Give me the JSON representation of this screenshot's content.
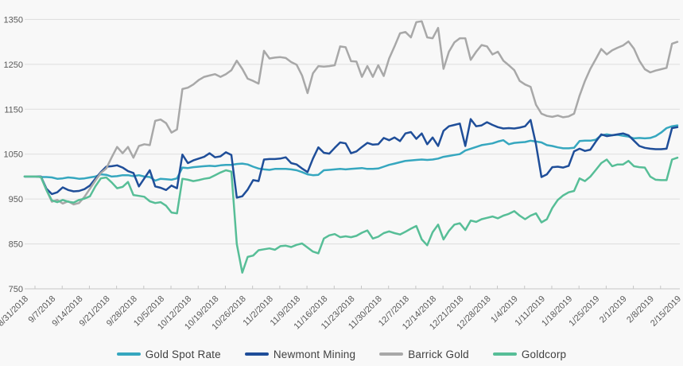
{
  "chart_data": {
    "type": "line",
    "title": "",
    "xlabel": "",
    "ylabel": "",
    "ylim": [
      750,
      1350
    ],
    "y_ticks": [
      750,
      850,
      950,
      1050,
      1150,
      1250,
      1350
    ],
    "grid": "horizontal-only",
    "legend_position": "bottom-center",
    "background_color": "#f8f8f8",
    "gridline_color": "#dddddd",
    "axis_line_color": "#c6c6c6",
    "axis_text_color": "#595959",
    "legend_text_color": "#3f3f3f",
    "x_tick_labels": [
      "8/31/2018",
      "9/7/2018",
      "9/14/2018",
      "9/21/2018",
      "9/28/2018",
      "10/5/2018",
      "10/12/2018",
      "10/19/2018",
      "10/26/2018",
      "11/2/2018",
      "11/9/2018",
      "11/16/2018",
      "11/23/2018",
      "11/30/2018",
      "12/7/2018",
      "12/14/2018",
      "12/21/2018",
      "12/28/2018",
      "1/4/2019",
      "1/11/2019",
      "1/18/2019",
      "1/25/2019",
      "2/1/2019",
      "2/8/2019",
      "2/15/2019"
    ],
    "points_per_tick": 5,
    "x_label_rotation_deg": -45,
    "series": [
      {
        "name": "Gold Spot Rate",
        "color": "#36a7bf",
        "values": [
          1000,
          1000,
          1000,
          999,
          999,
          998,
          995,
          996,
          998,
          997,
          995,
          996,
          998,
          1000,
          1005,
          1004,
          1000,
          1001,
          1003,
          1003,
          1001,
          1003,
          1000,
          999,
          991,
          995,
          994,
          993,
          996,
          1020,
          1019,
          1021,
          1022,
          1023,
          1024,
          1023,
          1025,
          1026,
          1026,
          1028,
          1029,
          1027,
          1022,
          1018,
          1016,
          1015,
          1017,
          1017,
          1017,
          1016,
          1014,
          1010,
          1005,
          1003,
          1004,
          1014,
          1015,
          1016,
          1017,
          1016,
          1017,
          1018,
          1019,
          1017,
          1017,
          1018,
          1022,
          1026,
          1029,
          1032,
          1035,
          1036,
          1037,
          1038,
          1037,
          1038,
          1040,
          1044,
          1046,
          1048,
          1050,
          1058,
          1062,
          1066,
          1070,
          1072,
          1074,
          1078,
          1081,
          1072,
          1075,
          1076,
          1077,
          1080,
          1078,
          1076,
          1070,
          1068,
          1065,
          1063,
          1063,
          1064,
          1079,
          1080,
          1080,
          1082,
          1092,
          1094,
          1092,
          1093,
          1091,
          1089,
          1085,
          1086,
          1085,
          1086,
          1090,
          1098,
          1108,
          1112,
          1114
        ]
      },
      {
        "name": "Newmont Mining",
        "color": "#1f4e99",
        "values": [
          1000,
          1000,
          1000,
          1000,
          973,
          961,
          965,
          976,
          970,
          967,
          968,
          972,
          980,
          995,
          1010,
          1022,
          1023,
          1025,
          1020,
          1012,
          1008,
          978,
          996,
          1014,
          978,
          975,
          970,
          980,
          974,
          1049,
          1030,
          1036,
          1040,
          1044,
          1052,
          1043,
          1045,
          1054,
          1048,
          953,
          956,
          971,
          992,
          990,
          1038,
          1039,
          1039,
          1040,
          1043,
          1030,
          1027,
          1018,
          1010,
          1040,
          1065,
          1053,
          1051,
          1064,
          1076,
          1074,
          1052,
          1056,
          1066,
          1075,
          1071,
          1072,
          1086,
          1081,
          1087,
          1079,
          1096,
          1099,
          1084,
          1096,
          1072,
          1087,
          1068,
          1102,
          1112,
          1115,
          1118,
          1068,
          1128,
          1112,
          1114,
          1121,
          1115,
          1110,
          1107,
          1108,
          1107,
          1109,
          1112,
          1126,
          1072,
          999,
          1005,
          1021,
          1022,
          1020,
          1024,
          1056,
          1062,
          1057,
          1060,
          1078,
          1094,
          1090,
          1092,
          1094,
          1096,
          1092,
          1080,
          1068,
          1064,
          1062,
          1061,
          1061,
          1062,
          1108,
          1110
        ]
      },
      {
        "name": "Barrick Gold",
        "color": "#a8a8a8",
        "values": [
          1000,
          1000,
          1000,
          999,
          970,
          944,
          948,
          940,
          945,
          938,
          941,
          955,
          973,
          991,
          1008,
          1018,
          1043,
          1066,
          1052,
          1066,
          1042,
          1068,
          1072,
          1070,
          1124,
          1127,
          1119,
          1098,
          1105,
          1195,
          1198,
          1205,
          1215,
          1222,
          1225,
          1228,
          1222,
          1228,
          1237,
          1258,
          1240,
          1218,
          1213,
          1207,
          1280,
          1263,
          1265,
          1266,
          1264,
          1255,
          1249,
          1225,
          1186,
          1230,
          1246,
          1245,
          1246,
          1248,
          1290,
          1288,
          1257,
          1256,
          1222,
          1246,
          1222,
          1248,
          1224,
          1263,
          1290,
          1319,
          1322,
          1310,
          1344,
          1346,
          1310,
          1308,
          1331,
          1240,
          1278,
          1299,
          1308,
          1308,
          1260,
          1278,
          1293,
          1290,
          1272,
          1278,
          1258,
          1248,
          1237,
          1213,
          1205,
          1200,
          1160,
          1140,
          1135,
          1133,
          1136,
          1132,
          1134,
          1140,
          1180,
          1213,
          1240,
          1262,
          1284,
          1272,
          1281,
          1287,
          1292,
          1301,
          1285,
          1258,
          1239,
          1232,
          1236,
          1239,
          1242,
          1296,
          1300
        ]
      },
      {
        "name": "Goldcorp",
        "color": "#57be97",
        "values": [
          1000,
          1000,
          1000,
          999,
          970,
          947,
          943,
          948,
          944,
          942,
          948,
          951,
          956,
          978,
          996,
          998,
          987,
          974,
          977,
          988,
          959,
          957,
          955,
          945,
          941,
          943,
          935,
          920,
          918,
          995,
          993,
          990,
          992,
          995,
          997,
          1003,
          1009,
          1014,
          1011,
          850,
          786,
          821,
          824,
          836,
          838,
          840,
          837,
          845,
          846,
          843,
          848,
          851,
          842,
          833,
          829,
          862,
          869,
          872,
          865,
          867,
          865,
          868,
          875,
          880,
          862,
          866,
          874,
          878,
          874,
          871,
          877,
          884,
          890,
          860,
          847,
          876,
          893,
          860,
          879,
          893,
          896,
          881,
          902,
          899,
          905,
          908,
          911,
          907,
          913,
          917,
          923,
          913,
          905,
          913,
          918,
          898,
          905,
          930,
          948,
          958,
          965,
          968,
          996,
          990,
          1000,
          1015,
          1030,
          1038,
          1023,
          1027,
          1027,
          1035,
          1023,
          1021,
          1020,
          1000,
          993,
          992,
          992,
          1038,
          1042
        ]
      }
    ]
  },
  "legend": {
    "items": [
      {
        "label": "Gold Spot Rate"
      },
      {
        "label": "Newmont Mining"
      },
      {
        "label": "Barrick Gold"
      },
      {
        "label": "Goldcorp"
      }
    ]
  }
}
